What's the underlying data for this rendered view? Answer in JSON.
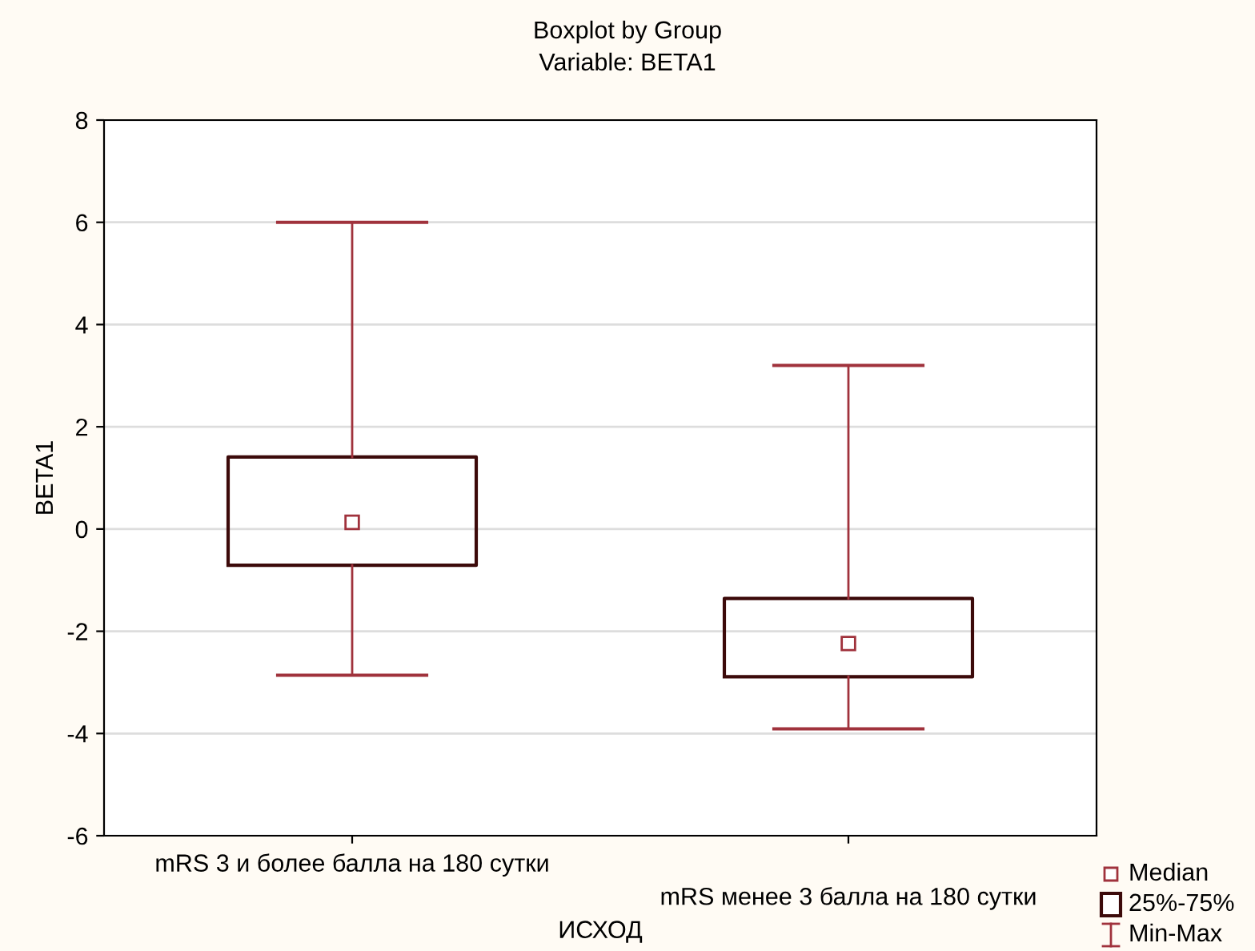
{
  "chart_data": {
    "type": "box",
    "title": "Boxplot by Group",
    "subtitle": "Variable: BETA1",
    "xlabel": "ИСХОД",
    "ylabel": "BETA1",
    "categories": [
      "mRS 3 и более балла на 180 сутки",
      "mRS менее 3 балла на 180 сутки"
    ],
    "series": [
      {
        "color": "#3c0a0a",
        "boxes": [
          {
            "low": -2.86,
            "q1": -0.71,
            "median": 0.13,
            "q3": 1.41,
            "high": 6.0
          },
          {
            "low": -3.91,
            "q1": -2.89,
            "median": -2.24,
            "q3": -1.36,
            "high": 3.2
          }
        ]
      }
    ],
    "ylim": [
      -6,
      8
    ],
    "yticks": [
      -6,
      -4,
      -2,
      0,
      2,
      4,
      6,
      8
    ],
    "grid": "y",
    "annotations": [
      "Median",
      "25%-75%",
      "Min-Max"
    ]
  }
}
